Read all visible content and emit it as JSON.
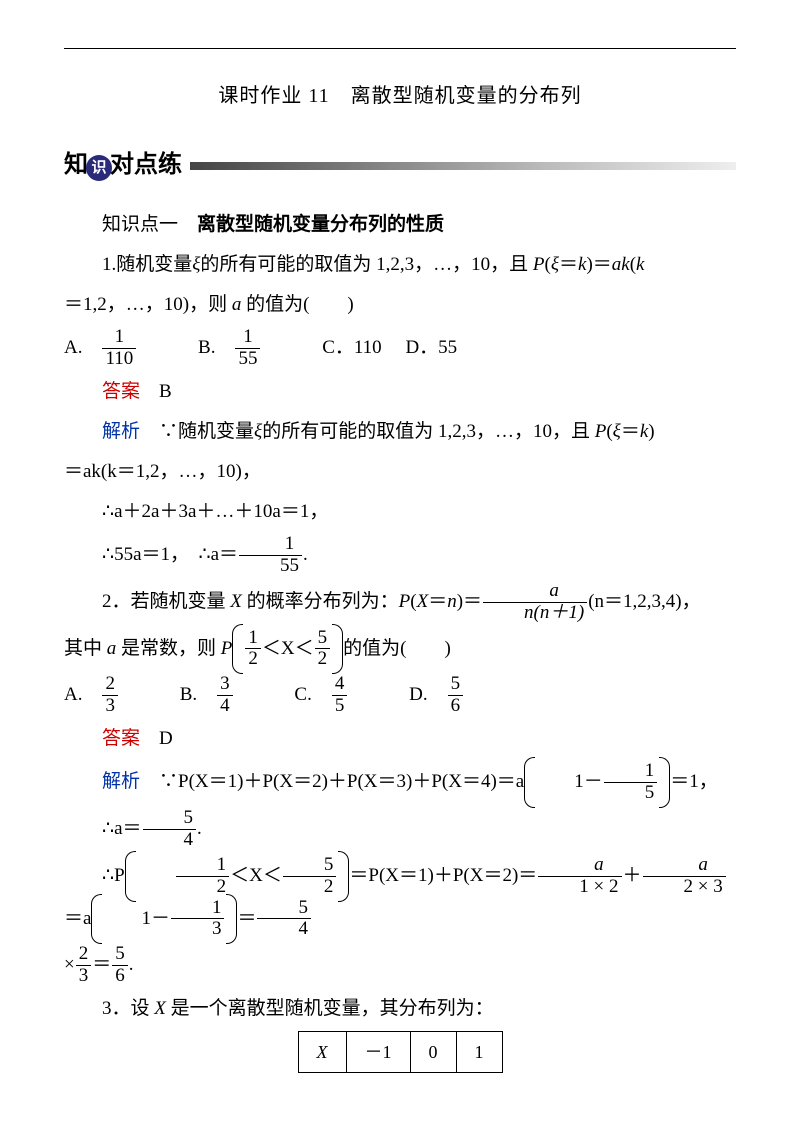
{
  "title": "课时作业 11　离散型随机变量的分布列",
  "heading": {
    "part1": "知",
    "circle": "识",
    "part2": "对点练"
  },
  "section1": {
    "label": "知识点一",
    "title": "离散型随机变量分布列的性质"
  },
  "q1": {
    "text_a": "1.随机变量",
    "var": "ξ",
    "text_b": "的所有可能的取值为 1,2,3，…，10，且 ",
    "prob": "P(ξ＝k)＝ak(k＝1,2，…，10)",
    "text_c": "，则 ",
    "var_a": "a",
    "text_d": " 的值为(　　)",
    "opts": {
      "A": "A.",
      "B": "B.",
      "C": "C．110",
      "D": "D．55"
    },
    "fracA_num": "1",
    "fracA_den": "110",
    "fracB_num": "1",
    "fracB_den": "55",
    "ans_label": "答案",
    "ans": "B",
    "expl_label": "解析",
    "expl_a": "∵随机变量",
    "expl_b": "的所有可能的取值为 1,2,3，…，",
    "expl_b2": "10，",
    "expl_b3": "且 ",
    "expl_c": "＝ak(k＝1,2，…，10)，",
    "expl_d": "∴a＋2a＋3a＋…＋10a＝1，",
    "expl_e": "∴55a＝1，　∴a＝",
    "dot": "."
  },
  "q2": {
    "text_a": "2．若随机变量 ",
    "var": "X",
    "text_b": " 的概率分布列为：",
    "prob_l": "P(X＝n)＝",
    "frac_num": "a",
    "frac_den": "n(n＋1)",
    "text_c": "(n＝1,2,3,4)，",
    "text_d": " 其中 ",
    "var_a": "a",
    "text_e": " 是常数，则 ",
    "P": "P",
    "range_l": "＜X＜",
    "half_num": "1",
    "half_den": "2",
    "five_half_num": "5",
    "five_half_den": "2",
    "text_f": "的值为(　　)",
    "optA_num": "2",
    "optA_den": "3",
    "optB_num": "3",
    "optB_den": "4",
    "optC_num": "4",
    "optC_den": "5",
    "optD_num": "5",
    "optD_den": "6",
    "opts": {
      "A": "A.",
      "B": "B.",
      "C": "C.",
      "D": "D."
    },
    "ans_label": "答案",
    "ans": "D",
    "expl_label": "解析",
    "expl_a": "∵P(X＝1)＋P(X＝2)＋P(X＝3)＋P(X＝4)＝a",
    "one_minus": "1－",
    "fifth_num": "1",
    "fifth_den": "5",
    "eq1": "＝1，",
    "so_a": "∴a＝",
    "five_four_num": "5",
    "five_four_den": "4",
    "soP": "∴P",
    "eqPX": "＝P(X＝1)＋P(X＝2)＝",
    "a_over_12_num": "a",
    "a_over_12_den": "1 × 2",
    "plus": "＋",
    "a_over_23_num": "a",
    "a_over_23_den": "2 × 3",
    "eq_a": "＝a",
    "third_num": "1",
    "third_den": "3",
    "eq54": "＝",
    "times": "×",
    "two_thirds_num": "2",
    "two_thirds_den": "3",
    "eq56": "＝"
  },
  "q3": {
    "text_a": "3．设 ",
    "var": "X",
    "text_b": " 是一个离散型随机变量，其分布列为：",
    "headers": [
      "X",
      "－1",
      "0",
      "1"
    ]
  },
  "colors": {
    "red": "#cc0000",
    "blue": "#0033aa",
    "page_bg": "#ffffff"
  }
}
